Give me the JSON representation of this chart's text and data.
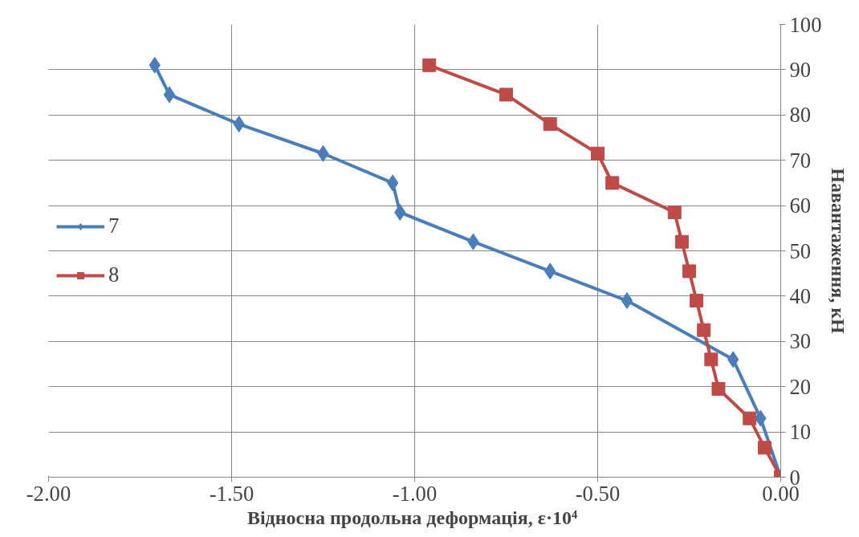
{
  "chart_data": {
    "type": "line",
    "xlabel": "Відносна продольна деформація,  ε·10⁴",
    "ylabel": "Навантаження, кН",
    "xlim": [
      -2,
      0
    ],
    "xticks": [
      {
        "value": -2,
        "label": "-2.00"
      },
      {
        "value": -1.5,
        "label": "-1.50"
      },
      {
        "value": -1,
        "label": "-1.00"
      },
      {
        "value": -0.5,
        "label": "-0.50"
      },
      {
        "value": 0,
        "label": "0.00"
      }
    ],
    "ylim": [
      0,
      100
    ],
    "yticks": [
      0,
      10,
      20,
      30,
      40,
      50,
      60,
      70,
      80,
      90,
      100
    ],
    "grid": true,
    "legend": "left",
    "line_style": "solid",
    "series": [
      {
        "name": "7",
        "color": "#4a7ebb",
        "marker": "diamond",
        "x": [
          0,
          -0.055,
          -0.13,
          -0.42,
          -0.63,
          -0.84,
          -1.04,
          -1.06,
          -1.25,
          -1.48,
          -1.67,
          -1.71
        ],
        "values": [
          0,
          13,
          26,
          39,
          45.5,
          52,
          58.5,
          65,
          71.5,
          78,
          84.5,
          91
        ]
      },
      {
        "name": "8",
        "color": "#be4b48",
        "marker": "square",
        "x": [
          0,
          -0.044,
          -0.085,
          -0.17,
          -0.19,
          -0.21,
          -0.23,
          -0.25,
          -0.27,
          -0.29,
          -0.46,
          -0.5,
          -0.63,
          -0.75,
          -0.96
        ],
        "values": [
          0,
          6.5,
          13,
          19.5,
          26,
          32.5,
          39,
          45.5,
          52,
          58.5,
          65,
          71.5,
          78,
          84.5,
          91
        ]
      }
    ]
  }
}
